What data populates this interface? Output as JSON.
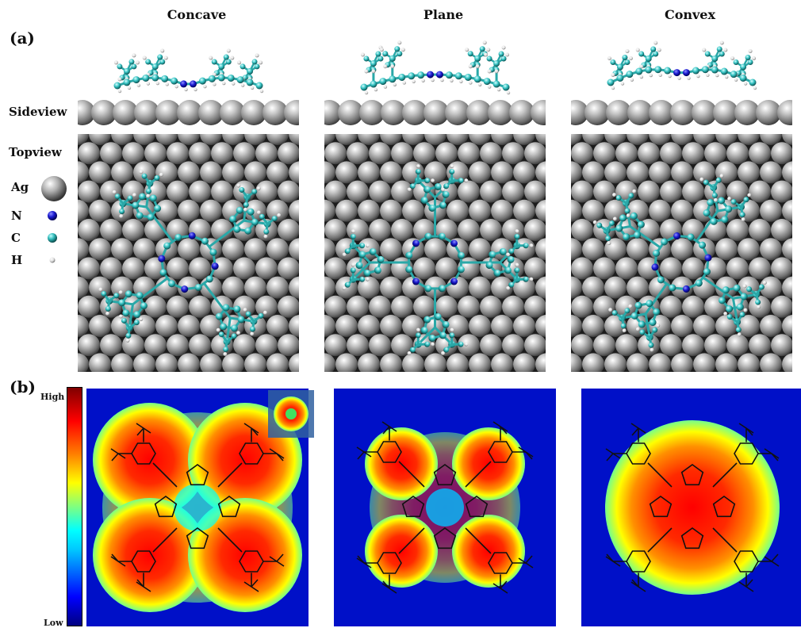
{
  "panel_labels": {
    "a": "(a)",
    "b": "(b)"
  },
  "columns": [
    {
      "title": "Concave",
      "key": "concave",
      "heat_profile": "corners"
    },
    {
      "title": "Plane",
      "key": "plane",
      "heat_profile": "tight-corners"
    },
    {
      "title": "Convex",
      "key": "convex",
      "heat_profile": "center"
    }
  ],
  "row_labels": {
    "side": "Sideview",
    "top": "Topview"
  },
  "atom_legend": [
    {
      "label": "Ag",
      "color": "#9a9a9a"
    },
    {
      "label": "N",
      "color": "#1a1ad0"
    },
    {
      "label": "C",
      "color": "#2fb8b8"
    },
    {
      "label": "H",
      "color": "#e8e8e8"
    }
  ],
  "colorbar": {
    "high_label": "High",
    "low_label": "Low",
    "stops": [
      "#000080",
      "#0000ff",
      "#00c8ff",
      "#00ffff",
      "#ffff00",
      "#ff8000",
      "#ff0000",
      "#800000"
    ]
  },
  "colors": {
    "surface_atom": "#a8a8a8",
    "map_background": "#0010c8",
    "molecule_line": "#111111"
  }
}
